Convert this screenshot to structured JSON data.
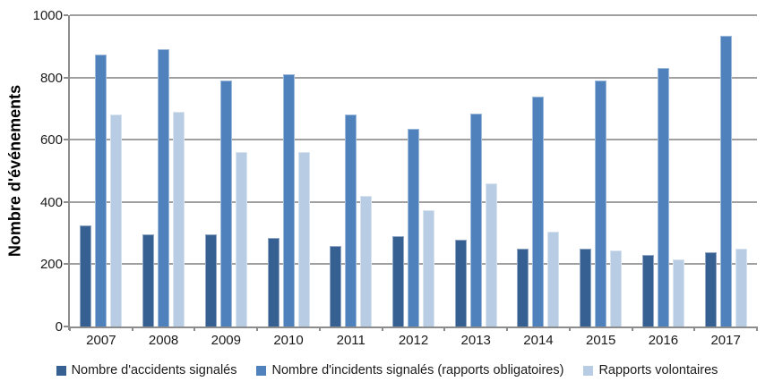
{
  "chart_data": {
    "type": "bar",
    "title": "",
    "xlabel": "",
    "ylabel": "Nombre d'événements",
    "ylim": [
      0,
      1000
    ],
    "yticks": [
      0,
      200,
      400,
      600,
      800,
      1000
    ],
    "grid": true,
    "legend_position": "bottom",
    "categories": [
      "2007",
      "2008",
      "2009",
      "2010",
      "2011",
      "2012",
      "2013",
      "2014",
      "2015",
      "2016",
      "2017"
    ],
    "series": [
      {
        "name": "Nombre d'accidents signalés",
        "color": "#376092",
        "values": [
          325,
          295,
          295,
          285,
          260,
          290,
          280,
          250,
          250,
          230,
          240
        ]
      },
      {
        "name": "Nombre d'incidents signalés (rapports obligatoires)",
        "color": "#4F81BD",
        "values": [
          875,
          890,
          790,
          810,
          680,
          635,
          685,
          740,
          790,
          830,
          935
        ]
      },
      {
        "name": "Rapports volontaires",
        "color": "#B8CCE4",
        "values": [
          680,
          690,
          560,
          560,
          420,
          375,
          460,
          305,
          245,
          215,
          250
        ]
      }
    ]
  },
  "colors": {
    "gridline": "#a0a0a0",
    "axis": "#8c8c8c",
    "text": "#1a1a1a",
    "background": "#ffffff"
  }
}
